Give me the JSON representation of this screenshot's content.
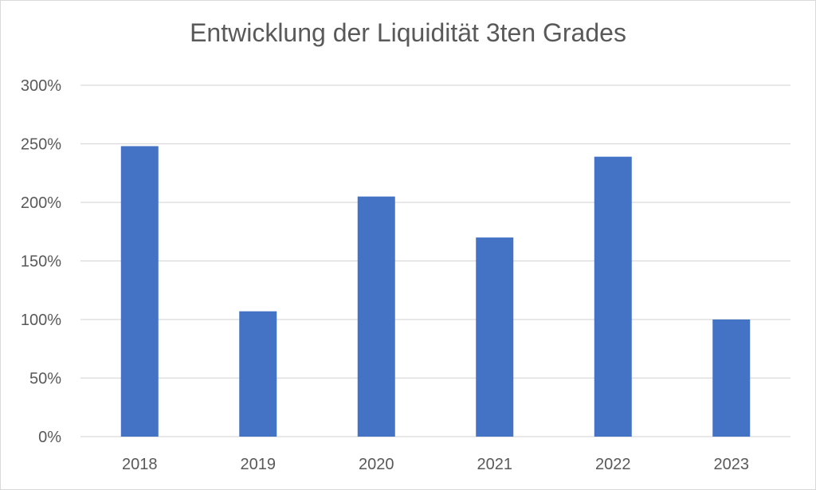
{
  "chart_data": {
    "type": "bar",
    "title": "Entwicklung der Liquidität 3ten Grades",
    "categories": [
      "2018",
      "2019",
      "2020",
      "2021",
      "2022",
      "2023"
    ],
    "values": [
      248,
      107,
      205,
      170,
      239,
      100
    ],
    "unit": "%",
    "ylim": [
      0,
      300
    ],
    "yticks": [
      0,
      50,
      100,
      150,
      200,
      250,
      300
    ],
    "ytick_labels": [
      "0%",
      "50%",
      "100%",
      "150%",
      "200%",
      "250%",
      "300%"
    ],
    "grid": true,
    "legend": "none",
    "colors": {
      "bar": "#4472c4",
      "grid": "#d9d9d9",
      "text": "#595959"
    }
  }
}
